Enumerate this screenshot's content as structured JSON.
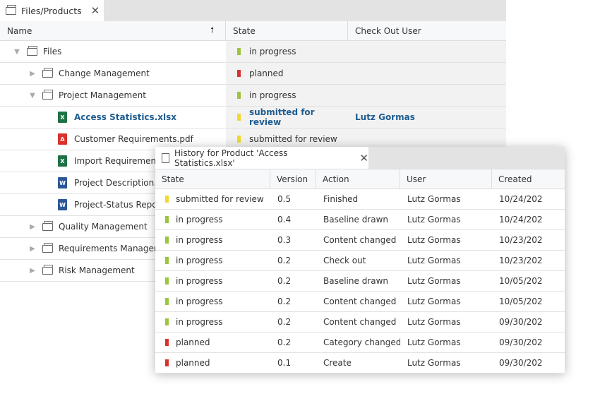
{
  "main": {
    "tab": {
      "label": "Files/Products",
      "icon": "folder-icon"
    },
    "columns": [
      "Name",
      "State",
      "Check Out User"
    ],
    "sort_icon": "arrow-up-icon",
    "rows": [
      {
        "name": "Files",
        "type": "folder",
        "level": 0,
        "expander": "expanded",
        "state": "in progress",
        "state_color": "#9bc53d",
        "user": ""
      },
      {
        "name": "Change Management",
        "type": "folder",
        "level": 1,
        "expander": "collapsed",
        "state": "planned",
        "state_color": "#d9322e",
        "user": ""
      },
      {
        "name": "Project Management",
        "type": "folder",
        "level": 1,
        "expander": "expanded",
        "state": "in progress",
        "state_color": "#9bc53d",
        "user": ""
      },
      {
        "name": "Access Statistics.xlsx",
        "type": "excel",
        "level": 2,
        "selected": true,
        "state": "submitted for review",
        "state_color": "#f2d72c",
        "user": "Lutz Gormas"
      },
      {
        "name": "Customer Requirements.pdf",
        "type": "pdf",
        "level": 2,
        "state": "submitted for review",
        "state_color": "#f2d72c",
        "user": ""
      },
      {
        "name": "Import Requirements",
        "type": "excel",
        "level": 2,
        "state": "",
        "user": ""
      },
      {
        "name": "Project Description.d",
        "type": "word",
        "level": 2,
        "state": "",
        "user": ""
      },
      {
        "name": "Project-Status Report",
        "type": "word",
        "level": 2,
        "state": "",
        "user": ""
      },
      {
        "name": "Quality Management",
        "type": "folder",
        "level": 1,
        "expander": "collapsed",
        "state": "",
        "user": ""
      },
      {
        "name": "Requirements Managem",
        "type": "folder",
        "level": 1,
        "expander": "collapsed",
        "state": "",
        "user": ""
      },
      {
        "name": "Risk Management",
        "type": "folder",
        "level": 1,
        "expander": "collapsed",
        "state": "",
        "user": ""
      }
    ]
  },
  "history": {
    "tab": {
      "label": "History for Product 'Access Statistics.xlsx'",
      "icon": "document-icon"
    },
    "columns": [
      "State",
      "Version",
      "Action",
      "User",
      "Created"
    ],
    "rows": [
      {
        "state": "submitted for review",
        "color": "#f2d72c",
        "version": "0.5",
        "action": "Finished",
        "user": "Lutz Gormas",
        "created": "10/24/202"
      },
      {
        "state": "in progress",
        "color": "#9bc53d",
        "version": "0.4",
        "action": "Baseline drawn",
        "user": "Lutz Gormas",
        "created": "10/24/202"
      },
      {
        "state": "in progress",
        "color": "#9bc53d",
        "version": "0.3",
        "action": "Content changed",
        "user": "Lutz Gormas",
        "created": "10/23/202"
      },
      {
        "state": "in progress",
        "color": "#9bc53d",
        "version": "0.2",
        "action": "Check out",
        "user": "Lutz Gormas",
        "created": "10/23/202"
      },
      {
        "state": "in progress",
        "color": "#9bc53d",
        "version": "0.2",
        "action": "Baseline drawn",
        "user": "Lutz Gormas",
        "created": "10/05/202"
      },
      {
        "state": "in progress",
        "color": "#9bc53d",
        "version": "0.2",
        "action": "Content changed",
        "user": "Lutz Gormas",
        "created": "10/05/202"
      },
      {
        "state": "in progress",
        "color": "#9bc53d",
        "version": "0.2",
        "action": "Content changed",
        "user": "Lutz Gormas",
        "created": "09/30/202"
      },
      {
        "state": "planned",
        "color": "#d9322e",
        "version": "0.2",
        "action": "Category changed",
        "user": "Lutz Gormas",
        "created": "09/30/202"
      },
      {
        "state": "planned",
        "color": "#d9322e",
        "version": "0.1",
        "action": "Create",
        "user": "Lutz Gormas",
        "created": "09/30/202"
      }
    ]
  }
}
